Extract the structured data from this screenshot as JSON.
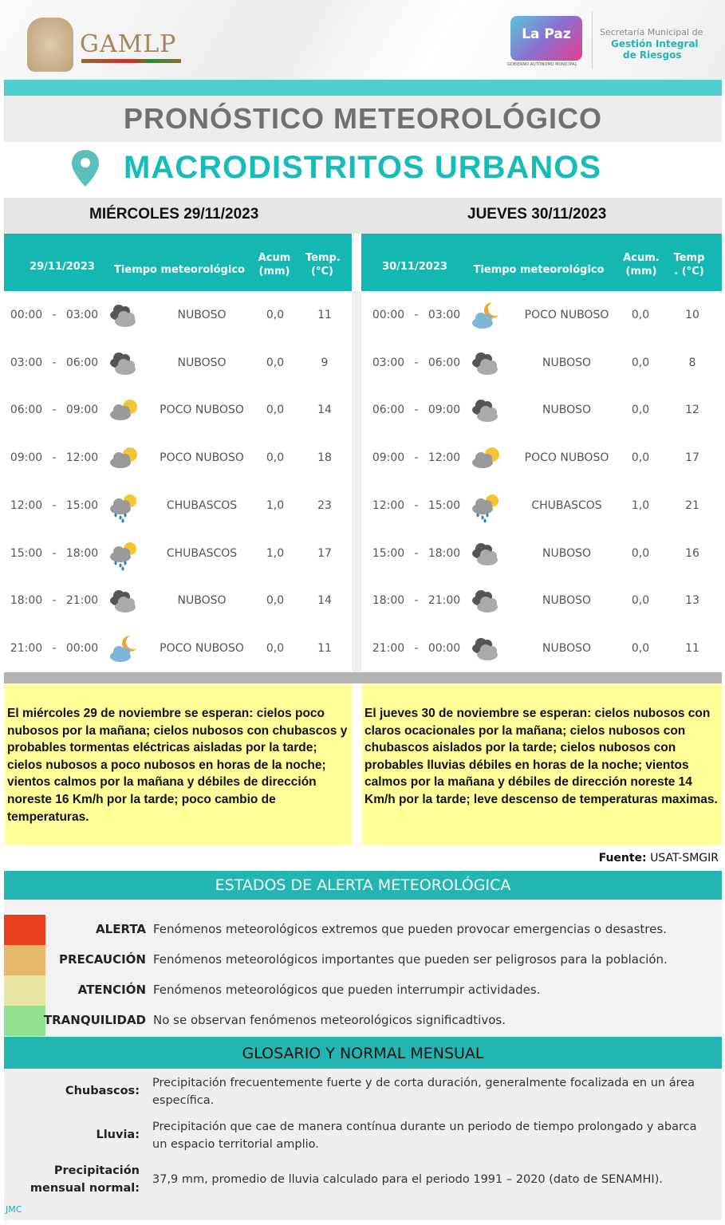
{
  "header": {
    "gamlp": "GAMLP",
    "lapaz": "La Paz",
    "lapaz_sub": "GOBIERNO AUTÓNOMO MUNICIPAL",
    "secretaria_line1": "Secretaría Municipal de",
    "secretaria_line2": "Gestión Integral",
    "secretaria_line3": "de Riesgos"
  },
  "title": "PRONÓSTICO METEOROLÓGICO",
  "subtitle": "MACRODISTRITOS URBANOS",
  "days": [
    {
      "heading": "MIÉRCOLES 29/11/2023",
      "columns": {
        "date": "29/11/2023",
        "weather": "Tiempo meteorológico",
        "acum": "Acum (mm)",
        "temp": "Temp. (°C)"
      },
      "rows": [
        {
          "from": "00:00",
          "to": "03:00",
          "icon": "cloudy",
          "condition": "NUBOSO",
          "acum": "0,0",
          "temp": "11"
        },
        {
          "from": "03:00",
          "to": "06:00",
          "icon": "cloudy",
          "condition": "NUBOSO",
          "acum": "0,0",
          "temp": "9"
        },
        {
          "from": "06:00",
          "to": "09:00",
          "icon": "partly-cloudy-day",
          "condition": "POCO NUBOSO",
          "acum": "0,0",
          "temp": "14"
        },
        {
          "from": "09:00",
          "to": "12:00",
          "icon": "partly-cloudy-day",
          "condition": "POCO NUBOSO",
          "acum": "0,0",
          "temp": "18"
        },
        {
          "from": "12:00",
          "to": "15:00",
          "icon": "showers",
          "condition": "CHUBASCOS",
          "acum": "1,0",
          "temp": "23"
        },
        {
          "from": "15:00",
          "to": "18:00",
          "icon": "showers",
          "condition": "CHUBASCOS",
          "acum": "1,0",
          "temp": "17"
        },
        {
          "from": "18:00",
          "to": "21:00",
          "icon": "cloudy",
          "condition": "NUBOSO",
          "acum": "0,0",
          "temp": "14"
        },
        {
          "from": "21:00",
          "to": "00:00",
          "icon": "partly-cloudy-night",
          "condition": "POCO NUBOSO",
          "acum": "0,0",
          "temp": "11"
        }
      ],
      "summary": "El miércoles 29 de noviembre se esperan:  cielos poco nubosos por la mañana; cielos nubosos con chubascos y probables tormentas eléctricas aisladas por la tarde; cielos nubosos a poco nubosos en horas de la noche; vientos calmos por la mañana y débiles de dirección noreste 16 Km/h por la tarde; poco cambio de temperaturas."
    },
    {
      "heading": "JUEVES 30/11/2023",
      "columns": {
        "date": "30/11/2023",
        "weather": "Tiempo   meteorológico",
        "acum": "Acum. (mm)",
        "temp": "Temp . (°C)"
      },
      "rows": [
        {
          "from": "00:00",
          "to": "03:00",
          "icon": "partly-cloudy-night",
          "condition": "POCO NUBOSO",
          "acum": "0,0",
          "temp": "10"
        },
        {
          "from": "03:00",
          "to": "06:00",
          "icon": "cloudy",
          "condition": "NUBOSO",
          "acum": "0,0",
          "temp": "8"
        },
        {
          "from": "06:00",
          "to": "09:00",
          "icon": "cloudy",
          "condition": "NUBOSO",
          "acum": "0,0",
          "temp": "12"
        },
        {
          "from": "09:00",
          "to": "12:00",
          "icon": "partly-cloudy-day",
          "condition": "POCO NUBOSO",
          "acum": "0,0",
          "temp": "17"
        },
        {
          "from": "12:00",
          "to": "15:00",
          "icon": "showers",
          "condition": "CHUBASCOS",
          "acum": "1,0",
          "temp": "21"
        },
        {
          "from": "15:00",
          "to": "18:00",
          "icon": "cloudy",
          "condition": "NUBOSO",
          "acum": "0,0",
          "temp": "16"
        },
        {
          "from": "18:00",
          "to": "21:00",
          "icon": "cloudy",
          "condition": "NUBOSO",
          "acum": "0,0",
          "temp": "13"
        },
        {
          "from": "21:00",
          "to": "00:00",
          "icon": "cloudy",
          "condition": "NUBOSO",
          "acum": "0,0",
          "temp": "11"
        }
      ],
      "summary": "El jueves 30 de noviembre se esperan:  cielos nubosos con claros ocacionales por la mañana; cielos nubosos con chubascos aislados por la tarde; cielos nubosos con probables lluvias débiles en horas de la noche; vientos calmos por la mañana y débiles de dirección noreste 14 Km/h por la tarde; leve descenso de temperaturas maximas."
    }
  ],
  "source": {
    "label": "Fuente:",
    "value": " USAT-SMGIR"
  },
  "alerts": {
    "heading": "ESTADOS DE ALERTA METEOROLÓGICA",
    "levels": [
      {
        "label": "ALERTA",
        "color": "#e8401c",
        "description": "Fenómenos meteorológicos extremos que pueden provocar emergencias o desastres."
      },
      {
        "label": "PRECAUCIÓN",
        "color": "#e6b86a",
        "description": "Fenómenos meteorológicos importantes que pueden ser peligrosos para la población."
      },
      {
        "label": "ATENCIÓN",
        "color": "#e6e6a0",
        "description": "Fenómenos meteorológicos que pueden interrumpir actividades."
      },
      {
        "label": "TRANQUILIDAD",
        "color": "#90e08e",
        "description": "No se observan fenómenos meteorológicos significadtivos."
      }
    ]
  },
  "glossary": {
    "heading": "GLOSARIO Y NORMAL MENSUAL",
    "items": [
      {
        "term": "Chubascos:",
        "definition": "Precipitación frecuentemente fuerte y de corta duración, generalmente focalizada en un área específica."
      },
      {
        "term": "Lluvia:",
        "definition": "Precipitación que cae de manera contínua durante un periodo de tiempo prolongado y abarca un espacio territorial amplio."
      },
      {
        "term": "Precipitación mensual normal:",
        "definition": "37,9 mm, promedio de lluvia calculado para el periodo 1991 – 2020 (dato de SENAMHI)."
      }
    ]
  },
  "footer": "JMC",
  "colors": {
    "teal": "#14b7b2",
    "yellow": "#ffff99"
  }
}
